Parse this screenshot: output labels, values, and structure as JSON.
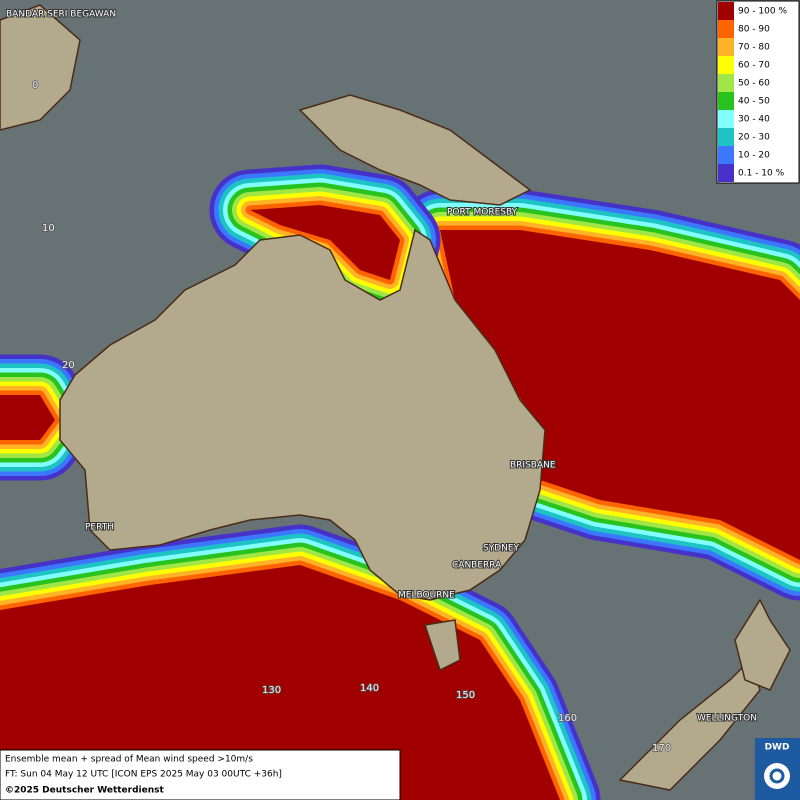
{
  "map": {
    "places": [
      "BANDAR SERI BEGAWAN",
      "PORT MORESBY",
      "BRISBANE",
      "SYDNEY",
      "CANBERRA",
      "MELBOURNE",
      "PERTH",
      "WELLINGTON"
    ],
    "grid_labels": [
      "0",
      "10",
      "20",
      "130",
      "140",
      "150",
      "160",
      "170"
    ],
    "legend": [
      {
        "label": "90 - 100 %",
        "color": "#a00000"
      },
      {
        "label": "80 - 90",
        "color": "#ff6400"
      },
      {
        "label": "70 - 80",
        "color": "#ffb428"
      },
      {
        "label": "60 - 70",
        "color": "#ffff00"
      },
      {
        "label": "50 - 60",
        "color": "#a0e646"
      },
      {
        "label": "40 - 50",
        "color": "#28c31e"
      },
      {
        "label": "30 - 40",
        "color": "#82ffff"
      },
      {
        "label": "20 - 30",
        "color": "#1ec3c3"
      },
      {
        "label": "10 - 20",
        "color": "#3c78ff"
      },
      {
        "label": "0.1 - 10 %",
        "color": "#4632c8"
      }
    ],
    "caption": [
      "Ensemble mean + spread of Mean wind speed >10m/s",
      "FT: Sun 04 May 12 UTC [ICON EPS 2025 May 03 00UTC +36h]",
      "©2025 Deutscher Wetterdienst"
    ],
    "logo": "DWD"
  }
}
